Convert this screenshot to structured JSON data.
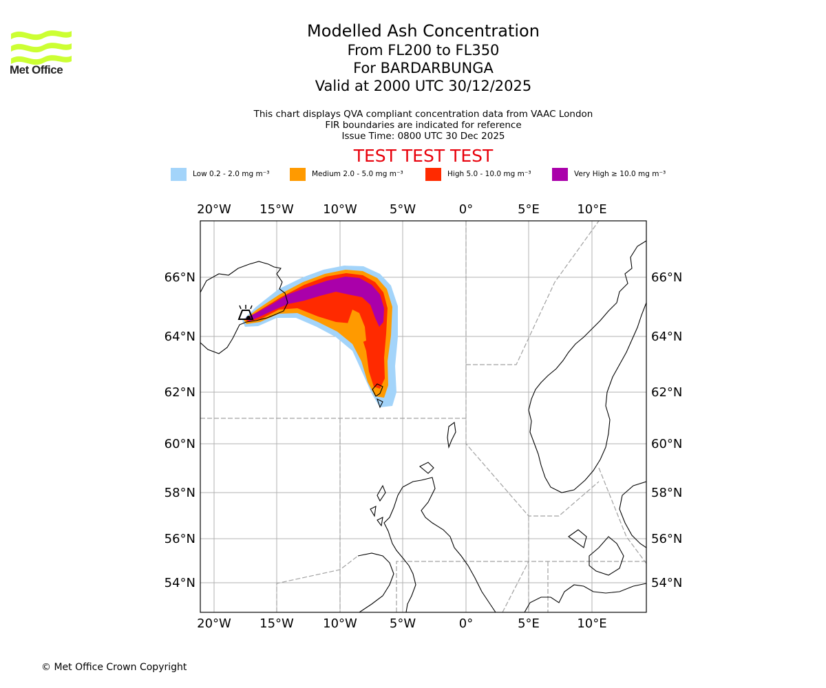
{
  "header": {
    "logo_text": "Met Office",
    "title": "Modelled Ash Concentration",
    "levels": "From FL200 to FL350",
    "volcano": "For BARDARBUNGA",
    "valid": "Valid at 2000 UTC 30/12/2025",
    "desc1": "This chart displays QVA compliant concentration data from VAAC London",
    "desc2": "FIR boundaries are indicated for reference",
    "issue": "Issue Time: 0800 UTC 30 Dec 2025",
    "test_banner": "TEST TEST TEST"
  },
  "legend": [
    {
      "label": "Low 0.2 - 2.0 mg m⁻³",
      "color": "#a3d4fa"
    },
    {
      "label": "Medium 2.0 - 5.0 mg m⁻³",
      "color": "#ff9a00"
    },
    {
      "label": "High 5.0 - 10.0 mg m⁻³",
      "color": "#ff2a00"
    },
    {
      "label": "Very High ≥ 10.0 mg m⁻³",
      "color": "#aa00aa"
    }
  ],
  "map": {
    "lon_ticks": [
      "20°W",
      "15°W",
      "10°W",
      "5°W",
      "0°",
      "5°E",
      "10°E"
    ],
    "lat_ticks": [
      "66°N",
      "64°N",
      "62°N",
      "60°N",
      "58°N",
      "56°N",
      "54°N"
    ],
    "volcano_symbol": "volcano-icon"
  },
  "footer": {
    "copyright": "© Met Office Crown Copyright"
  },
  "colors": {
    "coast": "#000000",
    "grid": "#b0b0b0",
    "fir": "#a0a0a0",
    "test": "#e8000b",
    "logo": "#ccff33"
  }
}
